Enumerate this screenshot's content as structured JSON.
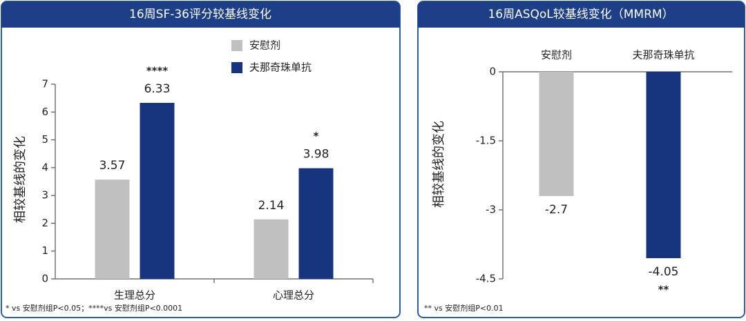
{
  "chart_data": [
    {
      "type": "bar",
      "title": "16周SF-36评分较基线变化",
      "y_label": "相较基线的变化",
      "categories": [
        "生理总分",
        "心理总分"
      ],
      "series": [
        {
          "name": "安慰剂",
          "color": "#c0c0c0",
          "values": [
            3.57,
            2.14
          ]
        },
        {
          "name": "夫那奇珠单抗",
          "color": "#17347e",
          "values": [
            6.33,
            3.98
          ],
          "significance": [
            "****",
            "*"
          ]
        }
      ],
      "ylim": [
        0,
        7
      ],
      "yticks": [
        0,
        1,
        2,
        3,
        4,
        5,
        6,
        7
      ],
      "legend": "top-right",
      "footnote": "* vs 安慰剂组P<0.05；****vs 安慰剂组P<0.0001"
    },
    {
      "type": "bar",
      "title": "16周ASQoL较基线变化（MMRM）",
      "y_label": "相较基线的变化",
      "categories": [
        "安慰剂",
        "夫那奇珠单抗"
      ],
      "values": [
        -2.7,
        -4.05
      ],
      "colors": [
        "#c0c0c0",
        "#17347e"
      ],
      "significance": [
        null,
        "**"
      ],
      "ylim": [
        -4.5,
        0
      ],
      "yticks": [
        0,
        -1.5,
        -3,
        -4.5
      ],
      "footnote": "** vs 安慰剂组P<0.01"
    }
  ]
}
